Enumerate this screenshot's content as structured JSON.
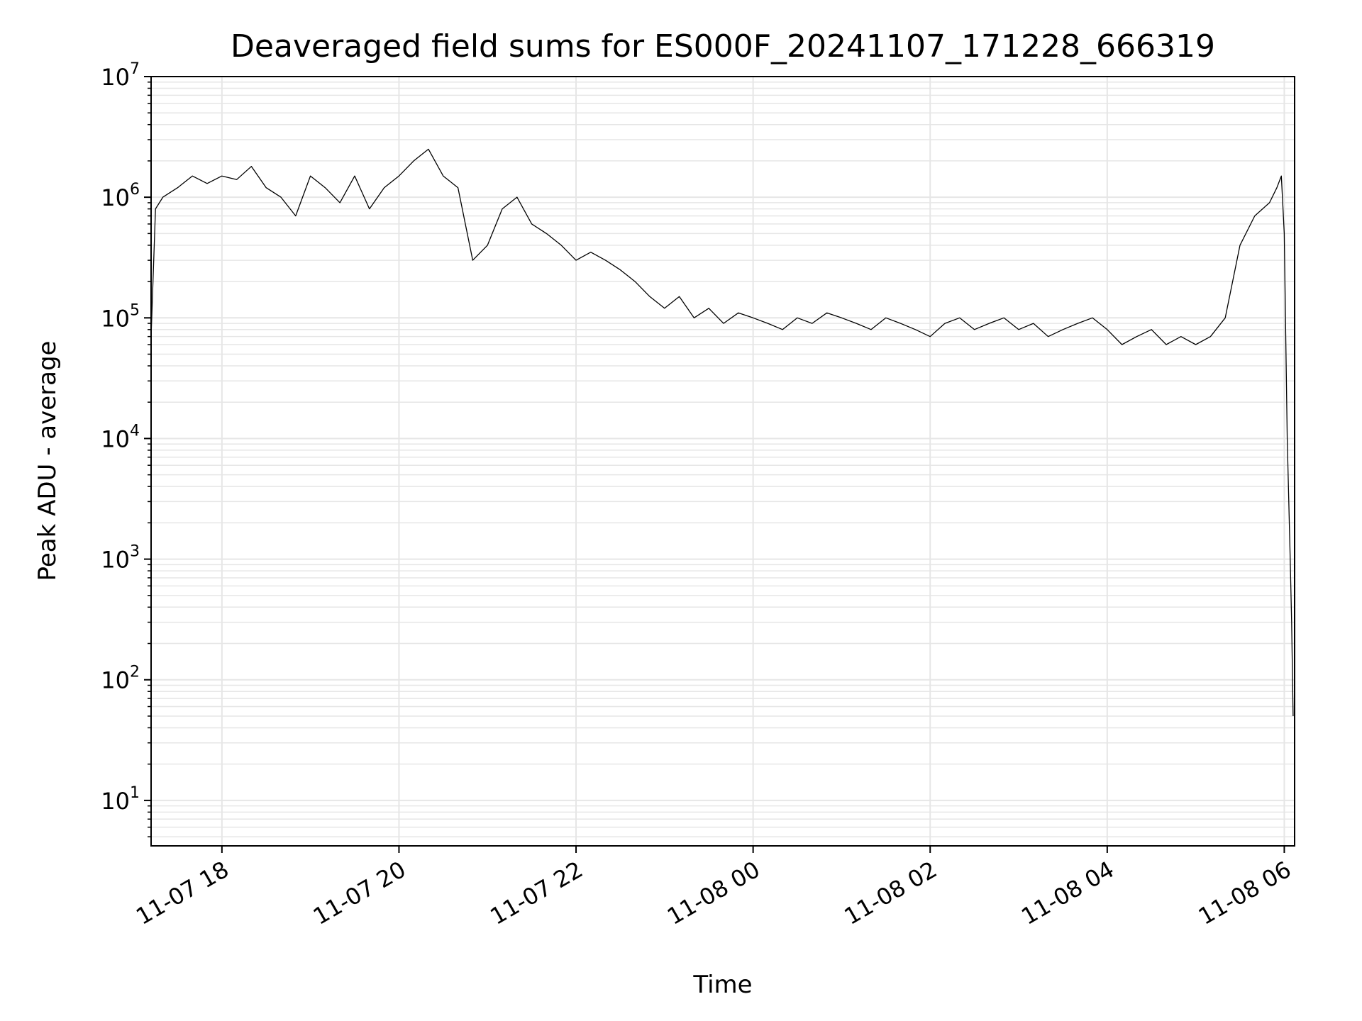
{
  "chart_data": {
    "type": "line",
    "title": "Deaveraged field sums for ES000F_20241107_171228_666319",
    "xlabel": "Time",
    "ylabel": "Peak ADU - average",
    "yscale": "log",
    "ylim": [
      4.2,
      10000000
    ],
    "xlim": [
      "2024-11-07 17:12",
      "2024-11-08 06:07"
    ],
    "grid": true,
    "line_color": "#000000",
    "grid_color": "#e6e6e6",
    "x_ticks": [
      {
        "value": "2024-11-07 18:00",
        "label": "11-07 18"
      },
      {
        "value": "2024-11-07 20:00",
        "label": "11-07 20"
      },
      {
        "value": "2024-11-07 22:00",
        "label": "11-07 22"
      },
      {
        "value": "2024-11-08 00:00",
        "label": "11-08 00"
      },
      {
        "value": "2024-11-08 02:00",
        "label": "11-08 02"
      },
      {
        "value": "2024-11-08 04:00",
        "label": "11-08 04"
      },
      {
        "value": "2024-11-08 06:00",
        "label": "11-08 06"
      }
    ],
    "y_ticks": [
      {
        "value": 10,
        "base": "10",
        "exp": "1"
      },
      {
        "value": 100,
        "base": "10",
        "exp": "2"
      },
      {
        "value": 1000,
        "base": "10",
        "exp": "3"
      },
      {
        "value": 10000,
        "base": "10",
        "exp": "4"
      },
      {
        "value": 100000,
        "base": "10",
        "exp": "5"
      },
      {
        "value": 1000000,
        "base": "10",
        "exp": "6"
      },
      {
        "value": 10000000,
        "base": "10",
        "exp": "7"
      }
    ],
    "series": [
      {
        "x": [
          "2024-11-07 17:12",
          "2024-11-07 17:15",
          "2024-11-07 17:20",
          "2024-11-07 17:30",
          "2024-11-07 17:40",
          "2024-11-07 17:50",
          "2024-11-07 18:00",
          "2024-11-07 18:10",
          "2024-11-07 18:20",
          "2024-11-07 18:30",
          "2024-11-07 18:40",
          "2024-11-07 18:50",
          "2024-11-07 19:00",
          "2024-11-07 19:10",
          "2024-11-07 19:20",
          "2024-11-07 19:30",
          "2024-11-07 19:40",
          "2024-11-07 19:50",
          "2024-11-07 20:00",
          "2024-11-07 20:10",
          "2024-11-07 20:20",
          "2024-11-07 20:30",
          "2024-11-07 20:40",
          "2024-11-07 20:50",
          "2024-11-07 21:00",
          "2024-11-07 21:10",
          "2024-11-07 21:20",
          "2024-11-07 21:30",
          "2024-11-07 21:40",
          "2024-11-07 21:50",
          "2024-11-07 22:00",
          "2024-11-07 22:10",
          "2024-11-07 22:20",
          "2024-11-07 22:30",
          "2024-11-07 22:40",
          "2024-11-07 22:50",
          "2024-11-07 23:00",
          "2024-11-07 23:10",
          "2024-11-07 23:20",
          "2024-11-07 23:30",
          "2024-11-07 23:40",
          "2024-11-07 23:50",
          "2024-11-08 00:00",
          "2024-11-08 00:10",
          "2024-11-08 00:20",
          "2024-11-08 00:30",
          "2024-11-08 00:40",
          "2024-11-08 00:50",
          "2024-11-08 01:00",
          "2024-11-08 01:10",
          "2024-11-08 01:20",
          "2024-11-08 01:30",
          "2024-11-08 01:40",
          "2024-11-08 01:50",
          "2024-11-08 02:00",
          "2024-11-08 02:10",
          "2024-11-08 02:20",
          "2024-11-08 02:30",
          "2024-11-08 02:40",
          "2024-11-08 02:50",
          "2024-11-08 03:00",
          "2024-11-08 03:10",
          "2024-11-08 03:20",
          "2024-11-08 03:30",
          "2024-11-08 03:40",
          "2024-11-08 03:50",
          "2024-11-08 04:00",
          "2024-11-08 04:10",
          "2024-11-08 04:20",
          "2024-11-08 04:30",
          "2024-11-08 04:40",
          "2024-11-08 04:50",
          "2024-11-08 05:00",
          "2024-11-08 05:10",
          "2024-11-08 05:20",
          "2024-11-08 05:30",
          "2024-11-08 05:40",
          "2024-11-08 05:50",
          "2024-11-08 05:55",
          "2024-11-08 05:58",
          "2024-11-08 06:00",
          "2024-11-08 06:02",
          "2024-11-08 06:04",
          "2024-11-08 06:05",
          "2024-11-08 06:06"
        ],
        "y": [
          70000,
          800000,
          1000000,
          1200000,
          1500000,
          1300000,
          1500000,
          1400000,
          1800000,
          1200000,
          1000000,
          700000,
          1500000,
          1200000,
          900000,
          1500000,
          800000,
          1200000,
          1500000,
          2000000,
          2500000,
          1500000,
          1200000,
          300000,
          400000,
          800000,
          1000000,
          600000,
          500000,
          400000,
          300000,
          350000,
          300000,
          250000,
          200000,
          150000,
          120000,
          150000,
          100000,
          120000,
          90000,
          110000,
          100000,
          90000,
          80000,
          100000,
          90000,
          110000,
          100000,
          90000,
          80000,
          100000,
          90000,
          80000,
          70000,
          90000,
          100000,
          80000,
          90000,
          100000,
          80000,
          90000,
          70000,
          80000,
          90000,
          100000,
          80000,
          60000,
          70000,
          80000,
          60000,
          70000,
          60000,
          70000,
          100000,
          400000,
          700000,
          900000,
          1200000,
          1500000,
          500000,
          10000,
          1000,
          300,
          50
        ]
      }
    ]
  }
}
